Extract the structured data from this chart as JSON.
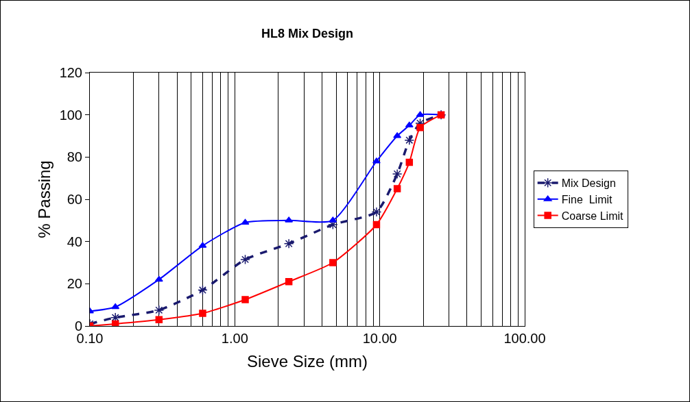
{
  "chart_data": {
    "type": "line",
    "title": "HL8 Mix Design",
    "xlabel": "Sieve Size (mm)",
    "ylabel": "% Passing",
    "x": [
      0.1,
      0.15,
      0.3,
      0.6,
      1.18,
      2.36,
      4.75,
      9.5,
      13.2,
      16,
      19,
      26.5
    ],
    "series": [
      {
        "name": "Mix Design",
        "color": "#1a1a6e",
        "line_style": "dashed",
        "marker": "cross",
        "values": [
          1,
          4,
          7.5,
          17,
          31.5,
          39,
          48,
          54,
          72,
          88,
          96,
          100
        ]
      },
      {
        "name": "Fine  Limit",
        "color": "#0000ff",
        "line_style": "solid",
        "marker": "triangle",
        "values": [
          7,
          9,
          22,
          38,
          49,
          50,
          50,
          78,
          90,
          95,
          100,
          100
        ]
      },
      {
        "name": "Coarse Limit",
        "color": "#ff0000",
        "line_style": "solid",
        "marker": "square",
        "values": [
          0,
          1,
          3,
          6,
          12.5,
          21,
          30,
          48,
          65,
          77.5,
          94,
          100
        ]
      }
    ],
    "log": "x",
    "xlim": [
      0.1,
      100
    ],
    "xticks": [
      {
        "value": 0.1,
        "label": "0.10"
      },
      {
        "value": 0.2,
        "label": null
      },
      {
        "value": 0.3,
        "label": null
      },
      {
        "value": 0.4,
        "label": null
      },
      {
        "value": 0.5,
        "label": null
      },
      {
        "value": 0.6,
        "label": null
      },
      {
        "value": 0.7,
        "label": null
      },
      {
        "value": 0.8,
        "label": null
      },
      {
        "value": 0.9,
        "label": null
      },
      {
        "value": 1,
        "label": "1.00"
      },
      {
        "value": 2,
        "label": null
      },
      {
        "value": 3,
        "label": null
      },
      {
        "value": 4,
        "label": null
      },
      {
        "value": 5,
        "label": null
      },
      {
        "value": 6,
        "label": null
      },
      {
        "value": 7,
        "label": null
      },
      {
        "value": 8,
        "label": null
      },
      {
        "value": 9,
        "label": null
      },
      {
        "value": 10,
        "label": "10.00"
      },
      {
        "value": 20,
        "label": null
      },
      {
        "value": 30,
        "label": null
      },
      {
        "value": 40,
        "label": null
      },
      {
        "value": 50,
        "label": null
      },
      {
        "value": 60,
        "label": null
      },
      {
        "value": 70,
        "label": null
      },
      {
        "value": 80,
        "label": null
      },
      {
        "value": 90,
        "label": null
      },
      {
        "value": 100,
        "label": "100.00"
      }
    ],
    "ylim": [
      0,
      120
    ],
    "yticks": [
      0,
      20,
      40,
      60,
      80,
      100,
      120
    ],
    "grid": "x",
    "legend": "right"
  }
}
